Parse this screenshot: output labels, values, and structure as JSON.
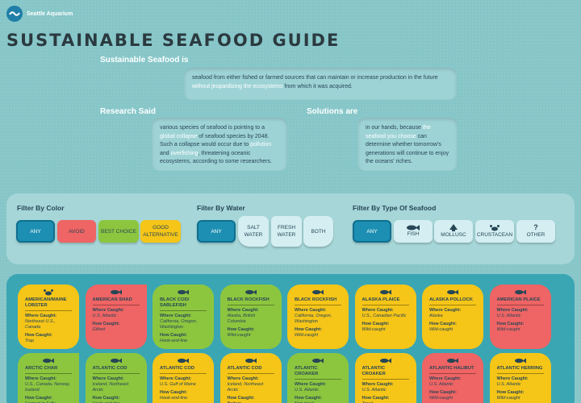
{
  "brand": {
    "name": "Seattle Aquarium"
  },
  "page_title": "SUSTAINABLE SEAFOOD GUIDE",
  "intro": {
    "heading": "Sustainable Seafood is",
    "text_a": "seafood from either fished or farmed sources that can maintain or increase production in the future ",
    "text_hl": "without jeopardizing the ecosystems",
    "text_b": " from which it was acquired."
  },
  "research": {
    "heading": "Research Said",
    "t1": "various species of seafood is pointing to a ",
    "h1": "global collapse",
    "t2": " of seafood species by 2048. Such a collapse would occur due to ",
    "h2": "pollution",
    "t3": " and ",
    "h3": "overfishing",
    "t4": ", threatening oceanic ecosystems, according to some researchers."
  },
  "solutions": {
    "heading": "Solutions are",
    "t1": "in our hands, because ",
    "h1": "the seafood you choose",
    "t2": " can determine whether tomorrow's generations will continue to enjoy the oceans' riches."
  },
  "filters": {
    "color": {
      "title": "Filter By Color",
      "options": [
        "ANY",
        "AVOID",
        "BEST CHOICE",
        "GOOD ALTERNATIVE"
      ]
    },
    "water": {
      "title": "Filter By Water",
      "options": [
        "ANY",
        "SALT WATER",
        "FRESH WATER",
        "BOTH"
      ]
    },
    "type": {
      "title": "Filter By Type Of Seafood",
      "options": [
        "ANY",
        "FISH",
        "MOLLUSC",
        "CRUSTACEAN",
        "OTHER"
      ],
      "other_icon_text": "?"
    }
  },
  "labels": {
    "where": "Where Caught:",
    "how": "How Caught:"
  },
  "cards": [
    {
      "name": "AMERICAN/MAINE LOBSTER",
      "color": "y",
      "icon": "crab",
      "where": "Northeast U.S., Canada",
      "how": "Trap"
    },
    {
      "name": "AMERICAN SHAD",
      "color": "r",
      "icon": "fish",
      "where": "U.S. Atlantic",
      "how": "Gillnet"
    },
    {
      "name": "BLACK COD/ SABLEFISH",
      "color": "g",
      "icon": "fish",
      "where": "California, Oregon, Washington",
      "how": "Hook-and-line"
    },
    {
      "name": "BLACK ROCKFISH",
      "color": "g",
      "icon": "fish",
      "where": "Alaska, British Columbia",
      "how": "Wild-caught"
    },
    {
      "name": "BLACK ROCKFISH",
      "color": "y",
      "icon": "fish",
      "where": "California, Oregon, Washington",
      "how": "Wild-caught"
    },
    {
      "name": "ALASKA PLAICE",
      "color": "y",
      "icon": "fish",
      "where": "U.S., Canadian Pacific",
      "how": "Wild-caught"
    },
    {
      "name": "ALASKA POLLOCK",
      "color": "y",
      "icon": "fish",
      "where": "Alaska",
      "how": "Wild-caught"
    },
    {
      "name": "AMERICAN PLAICE",
      "color": "r",
      "icon": "fish",
      "where": "U.S. Atlantic",
      "how": "Wild-caught"
    },
    {
      "name": "ARCTIC CHAR",
      "color": "g",
      "icon": "fish",
      "where": "U.S., Canada, Norway, Iceland",
      "how": "Farmed in Fully"
    },
    {
      "name": "ATLANTIC COD",
      "color": "g",
      "icon": "fish",
      "where": "Iceland, Northeast Arctic",
      "how": "Hook-and-line"
    },
    {
      "name": "ATLANTIC COD",
      "color": "y",
      "icon": "fish",
      "where": "U.S. Gulf of Maine",
      "how": "Hook-and-line"
    },
    {
      "name": "ATLANTIC COD",
      "color": "y",
      "icon": "fish",
      "where": "Iceland, Northeast Arctic",
      "how": "Bottom-"
    },
    {
      "name": "ATLANTIC CROAKER",
      "color": "g",
      "icon": "fish",
      "where": "U.S. Atlantic",
      "how": "Non-trawl"
    },
    {
      "name": "ATLANTIC CROAKER",
      "color": "y",
      "icon": "fish",
      "where": "U.S. Atlantic",
      "how": "Trawl"
    },
    {
      "name": "ATLANTIC HALIBUT",
      "color": "r",
      "icon": "fish",
      "where": "U.S. Atlantic",
      "how": "Wild-caught"
    },
    {
      "name": "ATLANTIC HERRING",
      "color": "y",
      "icon": "fish",
      "where": "U.S. Atlantic",
      "how": "Wild-caught"
    }
  ]
}
